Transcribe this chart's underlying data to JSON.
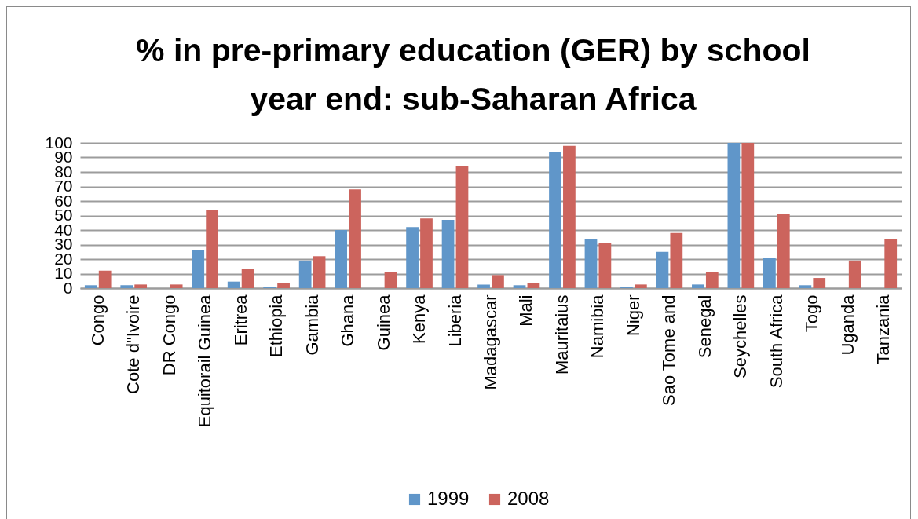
{
  "chart_data": {
    "type": "bar",
    "title": "%  in pre-primary education (GER) by school\nyear end: sub-Saharan Africa",
    "categories": [
      "Congo",
      "Cote d\"Ivoire",
      "DR Congo",
      "Equitorail Guinea",
      "Eritrea",
      "Ethiopia",
      "Gambia",
      "Ghana",
      "Guinea",
      "Kenya",
      "Liberia",
      "Madagascar",
      "Mali",
      "Mauritaius",
      "Namibia",
      "Niger",
      "Sao Tome and",
      "Senegal",
      "Seychelles",
      "South Africa",
      "Togo",
      "Uganda",
      "Tanzania"
    ],
    "series": [
      {
        "name": "1999",
        "color": "#6096c9",
        "values": [
          2,
          2,
          null,
          26,
          4.5,
          1,
          19,
          40,
          null,
          42,
          47,
          2.5,
          2,
          94,
          34,
          1,
          25,
          2.5,
          100,
          21,
          2,
          null,
          null
        ]
      },
      {
        "name": "2008",
        "color": "#cc645d",
        "values": [
          12,
          2.5,
          2.5,
          54,
          13,
          3.5,
          22,
          68,
          11,
          48,
          84,
          9,
          3.5,
          98,
          31,
          2.5,
          38,
          11,
          100,
          51,
          7,
          19,
          34
        ]
      }
    ],
    "ylim": [
      0,
      100
    ],
    "yticks": [
      0,
      10,
      20,
      30,
      40,
      50,
      60,
      70,
      80,
      90,
      100
    ],
    "grid": "y",
    "legend": "bottom"
  }
}
